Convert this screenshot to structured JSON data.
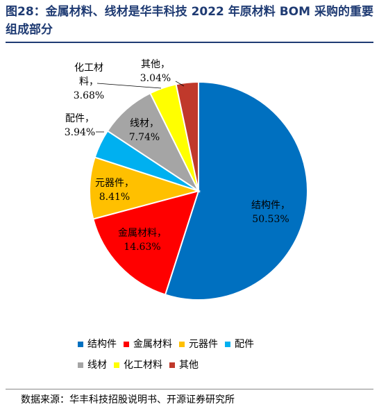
{
  "header": {
    "title": "图28：金属材料、线材是华丰科技 2022 年原材料 BOM 采购的重要组成部分"
  },
  "chart_data": {
    "type": "pie",
    "title": "图28：金属材料、线材是华丰科技 2022 年原材料 BOM 采购的重要组成部分",
    "slices": [
      {
        "name": "结构件",
        "value": 50.53,
        "label_pct": "50.53%",
        "color": "#0070c0"
      },
      {
        "name": "金属材料",
        "value": 14.63,
        "label_pct": "14.63%",
        "color": "#ff0000"
      },
      {
        "name": "元器件",
        "value": 8.41,
        "label_pct": "8.41%",
        "color": "#ffc000"
      },
      {
        "name": "配件",
        "value": 3.94,
        "label_pct": "3.94%",
        "color": "#00b0f0"
      },
      {
        "name": "线材",
        "value": 7.74,
        "label_pct": "7.74%",
        "color": "#a5a5a5"
      },
      {
        "name": "化工材料",
        "value": 3.68,
        "label_pct": "3.68%",
        "color": "#ffff00"
      },
      {
        "name": "其他",
        "value": 3.04,
        "label_pct": "3.04%",
        "color": "#c0392b"
      }
    ],
    "legend_placement": "bottom"
  },
  "footer": {
    "source": "数据来源：华丰科技招股说明书、开源证券研究所"
  }
}
